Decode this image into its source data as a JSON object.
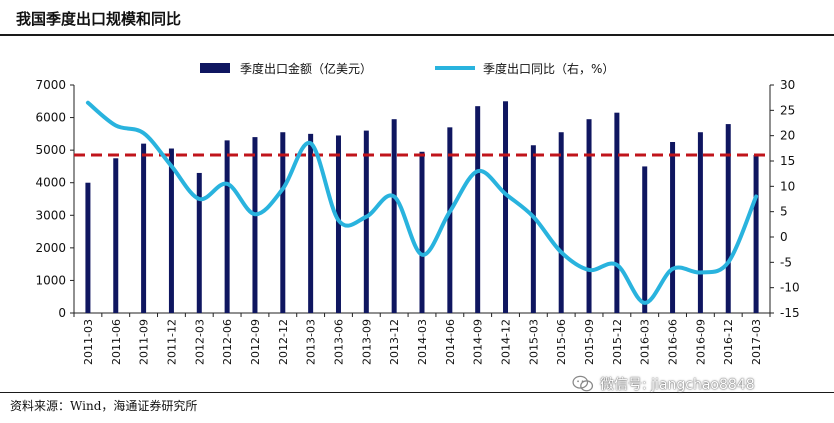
{
  "title": "我国季度出口规模和同比",
  "source": "资料来源：Wind，海通证券研究所",
  "watermark": "微信号: jiangchao8848",
  "colors": {
    "bar": "#0f1660",
    "line": "#29b3de",
    "reference": "#c0141b",
    "axis": "#222222"
  },
  "chart_data": {
    "type": "bar",
    "title": "我国季度出口规模和同比",
    "categories": [
      "2011-03",
      "2011-06",
      "2011-09",
      "2011-12",
      "2012-03",
      "2012-06",
      "2012-09",
      "2012-12",
      "2013-03",
      "2013-06",
      "2013-09",
      "2013-12",
      "2014-03",
      "2014-06",
      "2014-09",
      "2014-12",
      "2015-03",
      "2015-06",
      "2015-09",
      "2015-12",
      "2016-03",
      "2016-06",
      "2016-09",
      "2016-12",
      "2017-03"
    ],
    "series": [
      {
        "name": "季度出口金额（亿美元）",
        "type": "bar",
        "axis": "left",
        "values": [
          4000,
          4750,
          5200,
          5050,
          4300,
          5300,
          5400,
          5550,
          5500,
          5450,
          5600,
          5950,
          4950,
          5700,
          6350,
          6500,
          5150,
          5550,
          5950,
          6150,
          4500,
          5250,
          5550,
          5800,
          4850
        ]
      },
      {
        "name": "季度出口同比（右，%）",
        "type": "line",
        "axis": "right",
        "values": [
          26.5,
          22,
          20.5,
          14,
          7.5,
          10.5,
          4.5,
          9.5,
          18.5,
          3.3,
          4,
          8,
          -3.5,
          5,
          13,
          8.5,
          4,
          -3,
          -6.5,
          -5.5,
          -13,
          -6.3,
          -7,
          -5,
          8
        ]
      }
    ],
    "reference_line": {
      "axis": "left",
      "value": 4850,
      "style": "dashed"
    },
    "ylim_left": [
      0,
      7000
    ],
    "ylim_right": [
      -15,
      30
    ],
    "yticks_left": [
      0,
      1000,
      2000,
      3000,
      4000,
      5000,
      6000,
      7000
    ],
    "yticks_right": [
      -15,
      -10,
      -5,
      0,
      5,
      10,
      15,
      20,
      25,
      30
    ],
    "legend_position": "top-center",
    "grid": false
  }
}
